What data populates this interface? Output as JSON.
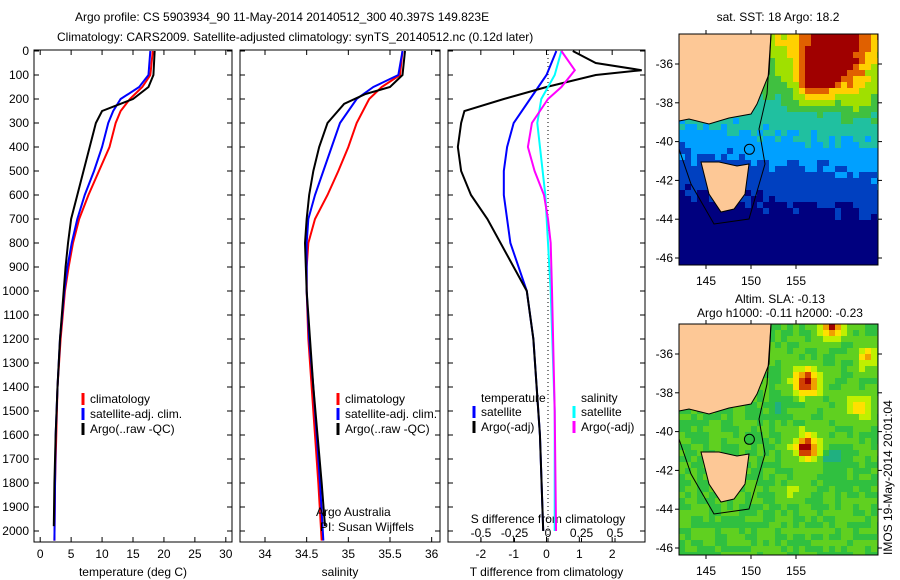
{
  "title_line1": "Argo profile: CS 5903934_90 11-May-2014 20140512_300 40.397S 149.823E",
  "title_line2": "Climatology: CARS2009. Satellite-adjusted climatology: synTS_20140512.nc (0.12d later)",
  "colors": {
    "clim": "#ff0000",
    "sat": "#0000ff",
    "argo": "#000000",
    "sat_s": "#00ffff",
    "argo_s": "#ff00ff",
    "land": "#fdc896"
  },
  "stamp": "IMOS 19-May-2014 20:01:04",
  "chart_data": [
    {
      "type": "line",
      "id": "temp",
      "xlabel": "temperature (deg C)",
      "ylabel": "",
      "xlim": [
        -1,
        31
      ],
      "ylim": [
        2045,
        0
      ],
      "xticks": [
        "0",
        "5",
        "10",
        "15",
        "20",
        "25",
        "30"
      ],
      "yticks": [
        "0",
        "100",
        "200",
        "300",
        "400",
        "500",
        "600",
        "700",
        "800",
        "900",
        "1000",
        "1100",
        "1200",
        "1300",
        "1400",
        "1500",
        "1600",
        "1700",
        "1800",
        "1900",
        "2000"
      ],
      "legend": [
        "climatology",
        "satellite-adj. clim.",
        "Argo(..raw -QC)"
      ],
      "series": [
        {
          "name": "climatology",
          "color": "clim",
          "depth": [
            0,
            100,
            150,
            200,
            250,
            300,
            400,
            500,
            600,
            700,
            800,
            900,
            1000,
            1200,
            1400,
            1600,
            1800,
            2040
          ],
          "values": [
            18.2,
            17.8,
            16.5,
            14.5,
            13,
            12.2,
            11.2,
            9.5,
            7.8,
            6.3,
            5.3,
            4.6,
            4.0,
            3.3,
            2.8,
            2.6,
            2.4,
            2.3
          ]
        },
        {
          "name": "satellite-adj. clim.",
          "color": "sat",
          "depth": [
            0,
            100,
            150,
            200,
            250,
            300,
            400,
            500,
            600,
            700,
            800,
            900,
            1000,
            1200,
            1400,
            1600,
            1800,
            2040
          ],
          "values": [
            17.8,
            17.5,
            16,
            13,
            11.8,
            11,
            10,
            8.7,
            7.2,
            6,
            5.1,
            4.4,
            3.9,
            3.2,
            2.8,
            2.5,
            2.4,
            2.3
          ]
        },
        {
          "name": "Argo(..raw -QC)",
          "color": "argo",
          "depth": [
            0,
            100,
            150,
            200,
            230,
            250,
            300,
            400,
            500,
            600,
            700,
            800,
            900,
            1000,
            1200,
            1400,
            1600,
            1800,
            1980
          ],
          "values": [
            18.5,
            18.3,
            17.5,
            15,
            12,
            10,
            9,
            8,
            7,
            6,
            5,
            4.5,
            4.1,
            3.8,
            3.2,
            2.8,
            2.5,
            2.3,
            2.2
          ]
        }
      ]
    },
    {
      "type": "line",
      "id": "sal",
      "xlabel": "salinity",
      "xlim": [
        33.7,
        36.1
      ],
      "ylim": [
        2045,
        0
      ],
      "xticks": [
        "34",
        "34.5",
        "35",
        "35.5",
        "36"
      ],
      "legend": [
        "climatology",
        "satellite-adj. clim.",
        "Argo(..raw -QC)"
      ],
      "annotation": [
        "Argo Australia",
        "PI: Susan Wijffels"
      ],
      "series": [
        {
          "name": "climatology",
          "color": "clim",
          "depth": [
            0,
            100,
            150,
            200,
            300,
            400,
            500,
            600,
            700,
            800,
            900,
            1000,
            1200,
            1400,
            1600,
            1800,
            2040
          ],
          "values": [
            35.65,
            35.62,
            35.4,
            35.25,
            35.1,
            35.0,
            34.88,
            34.75,
            34.6,
            34.52,
            34.5,
            34.5,
            34.52,
            34.56,
            34.6,
            34.64,
            34.68
          ]
        },
        {
          "name": "satellite-adj. clim.",
          "color": "sat",
          "depth": [
            0,
            100,
            150,
            200,
            300,
            400,
            500,
            600,
            700,
            800,
            1000,
            1200,
            1400,
            1600,
            1800,
            2040
          ],
          "values": [
            35.65,
            35.6,
            35.3,
            35.1,
            34.9,
            34.8,
            34.7,
            34.6,
            34.52,
            34.5,
            34.5,
            34.53,
            34.58,
            34.62,
            34.66,
            34.7
          ]
        },
        {
          "name": "Argo(..raw -QC)",
          "color": "argo",
          "depth": [
            0,
            100,
            150,
            180,
            220,
            300,
            400,
            500,
            600,
            700,
            800,
            900,
            1000,
            1200,
            1400,
            1600,
            1800,
            1980
          ],
          "values": [
            35.68,
            35.65,
            35.5,
            35.2,
            34.95,
            34.75,
            34.65,
            34.58,
            34.53,
            34.5,
            34.48,
            34.49,
            34.5,
            34.54,
            34.58,
            34.63,
            34.68,
            34.72
          ]
        }
      ]
    },
    {
      "type": "line",
      "id": "diff",
      "xlabel": "T difference from climatology",
      "x2label": "S difference from climatology",
      "xlim": [
        -3,
        3
      ],
      "x2lim": [
        -0.75,
        0.75
      ],
      "ylim": [
        2045,
        0
      ],
      "xticks": [
        "-2",
        "-1",
        "0",
        "1",
        "2"
      ],
      "x2ticks": [
        "-0.5",
        "-0.25",
        "0",
        "0.25",
        "0.5"
      ],
      "legend_t_title": "temperature",
      "legend_s_title": "salinity",
      "legend": [
        "satellite",
        "Argo(-adj)",
        "satellite",
        "Argo(-adj)"
      ],
      "series": [
        {
          "name": "T satellite",
          "axis": "T",
          "color": "sat",
          "depth": [
            0,
            100,
            200,
            300,
            400,
            500,
            600,
            700,
            800,
            1000,
            1200,
            1600,
            2000
          ],
          "values": [
            0.3,
            0,
            -0.5,
            -1,
            -1.2,
            -1.3,
            -1.3,
            -1.2,
            -1.1,
            -0.6,
            -0.4,
            -0.2,
            -0.1
          ]
        },
        {
          "name": "T Argo(-adj)",
          "axis": "T",
          "color": "argo",
          "depth": [
            0,
            50,
            80,
            100,
            150,
            200,
            250,
            300,
            400,
            500,
            600,
            700,
            800,
            900,
            1000,
            1200,
            1400,
            1600,
            1800,
            2000
          ],
          "values": [
            0.8,
            1.5,
            2.9,
            1.5,
            0,
            -1.3,
            -2.5,
            -2.6,
            -2.7,
            -2.6,
            -2.3,
            -1.8,
            -1.4,
            -1.0,
            -0.6,
            -0.4,
            -0.3,
            -0.2,
            -0.15,
            -0.1
          ]
        },
        {
          "name": "S satellite",
          "axis": "S",
          "color": "sat_s",
          "depth": [
            0,
            100,
            200,
            300,
            400,
            500,
            600,
            800,
            1000,
            1500,
            2000
          ],
          "values": [
            0.1,
            0.05,
            -0.05,
            -0.08,
            -0.06,
            -0.04,
            -0.02,
            0,
            0.02,
            0.05,
            0.05
          ]
        },
        {
          "name": "S Argo(-adj)",
          "axis": "S",
          "color": "argo_s",
          "depth": [
            0,
            80,
            150,
            200,
            300,
            400,
            500,
            600,
            700,
            800,
            1000,
            1500,
            2000
          ],
          "values": [
            0.1,
            0.2,
            0.1,
            0,
            -0.12,
            -0.15,
            -0.1,
            -0.03,
            0,
            0.02,
            0.03,
            0.05,
            0.06
          ]
        }
      ]
    },
    {
      "type": "heatmap",
      "id": "sst",
      "title": "sat. SST: 18 Argo: 18.2",
      "lon_ticks": [
        "145",
        "150",
        "155"
      ],
      "lat_ticks": [
        "-36",
        "-38",
        "-40",
        "-42",
        "-44",
        "-46"
      ],
      "argo_position": [
        149.823,
        -40.397
      ]
    },
    {
      "type": "heatmap",
      "id": "sla",
      "title": "Altim. SLA: -0.13",
      "subtitle": "Argo h1000: -0.11 h2000: -0.23",
      "lon_ticks": [
        "145",
        "150",
        "155"
      ],
      "lat_ticks": [
        "-36",
        "-38",
        "-40",
        "-42",
        "-44",
        "-46"
      ],
      "argo_position": [
        149.823,
        -40.397
      ]
    }
  ]
}
